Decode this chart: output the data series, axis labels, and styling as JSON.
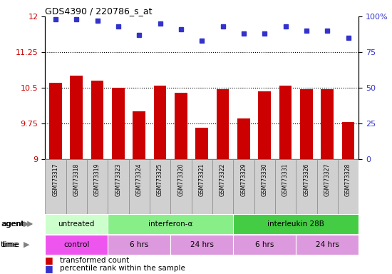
{
  "title": "GDS4390 / 220786_s_at",
  "samples": [
    "GSM773317",
    "GSM773318",
    "GSM773319",
    "GSM773323",
    "GSM773324",
    "GSM773325",
    "GSM773320",
    "GSM773321",
    "GSM773322",
    "GSM773329",
    "GSM773330",
    "GSM773331",
    "GSM773326",
    "GSM773327",
    "GSM773328"
  ],
  "bar_values": [
    10.6,
    10.75,
    10.65,
    10.5,
    10.0,
    10.55,
    10.4,
    9.65,
    10.47,
    9.85,
    10.42,
    10.55,
    10.47,
    10.47,
    9.78
  ],
  "dot_values": [
    98,
    98,
    97,
    93,
    87,
    95,
    91,
    83,
    93,
    88,
    88,
    93,
    90,
    90,
    85
  ],
  "ylim_left": [
    9,
    12
  ],
  "ylim_right": [
    0,
    100
  ],
  "yticks_left": [
    9,
    9.75,
    10.5,
    11.25,
    12
  ],
  "yticks_right": [
    0,
    25,
    50,
    75,
    100
  ],
  "ytick_labels_left": [
    "9",
    "9.75",
    "10.5",
    "11.25",
    "12"
  ],
  "ytick_labels_right": [
    "0",
    "25",
    "50",
    "75",
    "100%"
  ],
  "hlines": [
    9.75,
    10.5,
    11.25
  ],
  "bar_color": "#cc0000",
  "dot_color": "#3333cc",
  "agent_groups": [
    {
      "label": "untreated",
      "start": 0,
      "end": 3,
      "color": "#ccffcc"
    },
    {
      "label": "interferon-α",
      "start": 3,
      "end": 9,
      "color": "#88ee88"
    },
    {
      "label": "interleukin 28B",
      "start": 9,
      "end": 15,
      "color": "#44cc44"
    }
  ],
  "time_groups": [
    {
      "label": "control",
      "start": 0,
      "end": 3,
      "color": "#ee55ee"
    },
    {
      "label": "6 hrs",
      "start": 3,
      "end": 6,
      "color": "#dd99dd"
    },
    {
      "label": "24 hrs",
      "start": 6,
      "end": 9,
      "color": "#dd99dd"
    },
    {
      "label": "6 hrs",
      "start": 9,
      "end": 12,
      "color": "#dd99dd"
    },
    {
      "label": "24 hrs",
      "start": 12,
      "end": 15,
      "color": "#dd99dd"
    }
  ],
  "legend_bar_label": "transformed count",
  "legend_dot_label": "percentile rank within the sample",
  "sample_box_color": "#d0d0d0",
  "sample_box_edge": "#888888"
}
